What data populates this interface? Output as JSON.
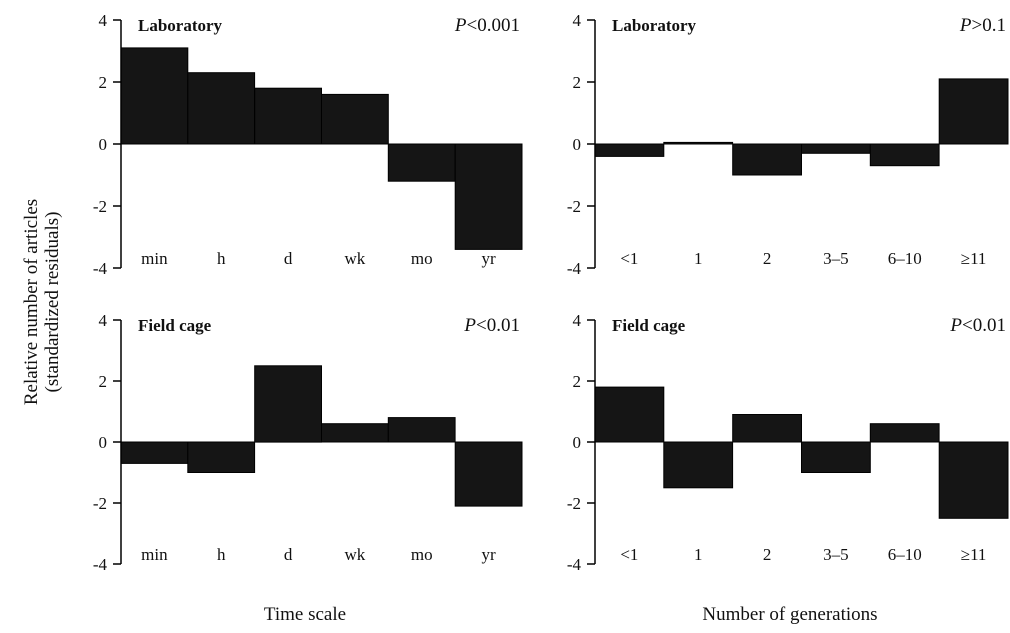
{
  "figure": {
    "ylabel_line1": "Relative number of articles",
    "ylabel_line2": "(standardized residuals)",
    "xlabel_left": "Time scale",
    "xlabel_right": "Number of generations"
  },
  "colors": {
    "bar": "#151515",
    "axis": "#000000"
  },
  "chart_data": [
    {
      "type": "bar",
      "title": "Laboratory",
      "annotation": "P<0.001",
      "annotation_letter": "P",
      "annotation_rest": "<0.001",
      "categories": [
        "min",
        "h",
        "d",
        "wk",
        "mo",
        "yr"
      ],
      "values": [
        3.1,
        2.3,
        1.8,
        1.6,
        -1.2,
        -3.4
      ],
      "ylim": [
        -4,
        4
      ],
      "yticks": [
        4,
        2,
        0,
        -2,
        -4
      ],
      "ytick_labels": [
        "4",
        "2",
        "0",
        "-2",
        "-4"
      ]
    },
    {
      "type": "bar",
      "title": "Laboratory",
      "annotation": "P>0.1",
      "annotation_letter": "P",
      "annotation_rest": ">0.1",
      "categories": [
        "<1",
        "1",
        "2",
        "3–5",
        "6–10",
        "≥11"
      ],
      "values": [
        -0.4,
        0.05,
        -1.0,
        -0.3,
        -0.7,
        2.1
      ],
      "ylim": [
        -4,
        4
      ],
      "yticks": [
        4,
        2,
        0,
        -2,
        -4
      ],
      "ytick_labels": [
        "4",
        "2",
        "0",
        "-2",
        "-4"
      ]
    },
    {
      "type": "bar",
      "title": "Field cage",
      "annotation": "P<0.01",
      "annotation_letter": "P",
      "annotation_rest": "<0.01",
      "categories": [
        "min",
        "h",
        "d",
        "wk",
        "mo",
        "yr"
      ],
      "values": [
        -0.7,
        -1.0,
        2.5,
        0.6,
        0.8,
        -2.1
      ],
      "ylim": [
        -4,
        4
      ],
      "yticks": [
        4,
        2,
        0,
        -2,
        -4
      ],
      "ytick_labels": [
        "4",
        "2",
        "0",
        "-2",
        "-4"
      ]
    },
    {
      "type": "bar",
      "title": "Field cage",
      "annotation": "P<0.01",
      "annotation_letter": "P",
      "annotation_rest": "<0.01",
      "categories": [
        "<1",
        "1",
        "2",
        "3–5",
        "6–10",
        "≥11"
      ],
      "values": [
        1.8,
        -1.5,
        0.9,
        -1.0,
        0.6,
        -2.5
      ],
      "ylim": [
        -4,
        4
      ],
      "yticks": [
        4,
        2,
        0,
        -2,
        -4
      ],
      "ytick_labels": [
        "4",
        "2",
        "0",
        "-2",
        "-4"
      ]
    }
  ]
}
